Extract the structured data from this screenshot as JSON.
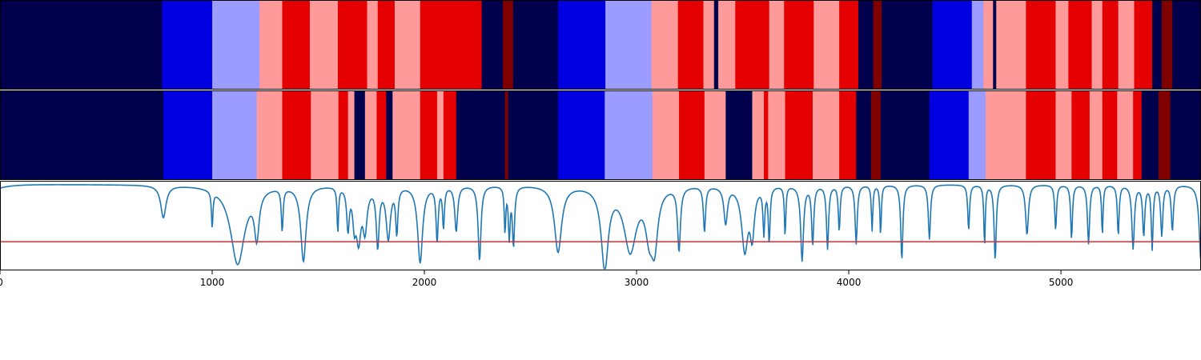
{
  "chart_data": {
    "type": "heatmap",
    "description_axis": "x",
    "xlim": [
      0,
      5660
    ],
    "xticks": [
      0,
      1000,
      2000,
      3000,
      4000,
      5000
    ],
    "xtick_labels": [
      "0",
      "1000",
      "2000",
      "3000",
      "4000",
      "5000"
    ],
    "grid": false,
    "colors": {
      "A": "#00004c",
      "B": "#0000e0",
      "C": "#9c9cff",
      "D": "#ff9a9a",
      "E": "#e40000",
      "F": "#800000",
      "curve": "#1f77b4",
      "threshold": "#e8282a"
    },
    "rows": [
      {
        "segments": [
          [
            0,
            764,
            "A"
          ],
          [
            764,
            1000,
            "B"
          ],
          [
            1000,
            1223,
            "C"
          ],
          [
            1223,
            1330,
            "D"
          ],
          [
            1330,
            1460,
            "E"
          ],
          [
            1460,
            1592,
            "D"
          ],
          [
            1592,
            1730,
            "E"
          ],
          [
            1730,
            1780,
            "D"
          ],
          [
            1780,
            1860,
            "E"
          ],
          [
            1860,
            1980,
            "D"
          ],
          [
            1980,
            2270,
            "E"
          ],
          [
            2270,
            2370,
            "A"
          ],
          [
            2370,
            2418,
            "F"
          ],
          [
            2418,
            2630,
            "A"
          ],
          [
            2630,
            2853,
            "B"
          ],
          [
            2853,
            3070,
            "C"
          ],
          [
            3070,
            3195,
            "D"
          ],
          [
            3195,
            3315,
            "E"
          ],
          [
            3315,
            3365,
            "D"
          ],
          [
            3365,
            3385,
            "A"
          ],
          [
            3385,
            3465,
            "D"
          ],
          [
            3465,
            3625,
            "E"
          ],
          [
            3625,
            3695,
            "D"
          ],
          [
            3695,
            3835,
            "E"
          ],
          [
            3835,
            3955,
            "D"
          ],
          [
            3955,
            4045,
            "E"
          ],
          [
            4045,
            4115,
            "A"
          ],
          [
            4115,
            4155,
            "F"
          ],
          [
            4155,
            4395,
            "A"
          ],
          [
            4395,
            4580,
            "B"
          ],
          [
            4580,
            4635,
            "C"
          ],
          [
            4635,
            4680,
            "D"
          ],
          [
            4680,
            4695,
            "A"
          ],
          [
            4695,
            4835,
            "D"
          ],
          [
            4835,
            4975,
            "E"
          ],
          [
            4975,
            5035,
            "D"
          ],
          [
            5035,
            5145,
            "E"
          ],
          [
            5145,
            5195,
            "D"
          ],
          [
            5195,
            5270,
            "E"
          ],
          [
            5270,
            5345,
            "D"
          ],
          [
            5345,
            5430,
            "E"
          ],
          [
            5430,
            5475,
            "A"
          ],
          [
            5475,
            5525,
            "F"
          ],
          [
            5525,
            5660,
            "A"
          ]
        ]
      },
      {
        "segments": [
          [
            0,
            770,
            "A"
          ],
          [
            770,
            1000,
            "B"
          ],
          [
            1000,
            1210,
            "C"
          ],
          [
            1210,
            1330,
            "D"
          ],
          [
            1330,
            1465,
            "E"
          ],
          [
            1465,
            1595,
            "D"
          ],
          [
            1595,
            1640,
            "E"
          ],
          [
            1640,
            1670,
            "D"
          ],
          [
            1670,
            1720,
            "A"
          ],
          [
            1720,
            1775,
            "D"
          ],
          [
            1775,
            1820,
            "E"
          ],
          [
            1820,
            1850,
            "A"
          ],
          [
            1850,
            1980,
            "D"
          ],
          [
            1980,
            2060,
            "E"
          ],
          [
            2060,
            2090,
            "D"
          ],
          [
            2090,
            2150,
            "E"
          ],
          [
            2150,
            2380,
            "A"
          ],
          [
            2380,
            2395,
            "F"
          ],
          [
            2395,
            2630,
            "A"
          ],
          [
            2630,
            2850,
            "B"
          ],
          [
            2850,
            3075,
            "C"
          ],
          [
            3075,
            3200,
            "D"
          ],
          [
            3200,
            3320,
            "E"
          ],
          [
            3320,
            3420,
            "D"
          ],
          [
            3420,
            3545,
            "A"
          ],
          [
            3545,
            3600,
            "D"
          ],
          [
            3600,
            3620,
            "E"
          ],
          [
            3620,
            3700,
            "D"
          ],
          [
            3700,
            3830,
            "E"
          ],
          [
            3830,
            3955,
            "D"
          ],
          [
            3955,
            4035,
            "E"
          ],
          [
            4035,
            4105,
            "A"
          ],
          [
            4105,
            4150,
            "F"
          ],
          [
            4150,
            4380,
            "A"
          ],
          [
            4380,
            4565,
            "B"
          ],
          [
            4565,
            4645,
            "C"
          ],
          [
            4645,
            4835,
            "D"
          ],
          [
            4835,
            4975,
            "E"
          ],
          [
            4975,
            5050,
            "D"
          ],
          [
            5050,
            5135,
            "E"
          ],
          [
            5135,
            5195,
            "D"
          ],
          [
            5195,
            5265,
            "E"
          ],
          [
            5265,
            5340,
            "D"
          ],
          [
            5340,
            5380,
            "E"
          ],
          [
            5380,
            5460,
            "A"
          ],
          [
            5460,
            5515,
            "F"
          ],
          [
            5515,
            5660,
            "A"
          ]
        ]
      }
    ],
    "curve": {
      "ylim": [
        0,
        1
      ],
      "threshold": 0.32,
      "baseline": 0.96,
      "dips": [
        [
          770,
          0.6,
          15
        ],
        [
          1000,
          0.55,
          4
        ],
        [
          1120,
          0.08,
          40
        ],
        [
          1210,
          0.45,
          13
        ],
        [
          1330,
          0.48,
          5
        ],
        [
          1430,
          0.12,
          15
        ],
        [
          1592,
          0.45,
          4
        ],
        [
          1640,
          0.5,
          7
        ],
        [
          1670,
          0.6,
          9
        ],
        [
          1690,
          0.4,
          13
        ],
        [
          1720,
          0.5,
          12
        ],
        [
          1780,
          0.3,
          8
        ],
        [
          1830,
          0.38,
          12
        ],
        [
          1870,
          0.45,
          6
        ],
        [
          1980,
          0.1,
          14
        ],
        [
          2060,
          0.35,
          6
        ],
        [
          2090,
          0.5,
          5
        ],
        [
          2150,
          0.45,
          8
        ],
        [
          2260,
          0.12,
          8
        ],
        [
          2380,
          0.45,
          4
        ],
        [
          2400,
          0.4,
          5
        ],
        [
          2420,
          0.3,
          6
        ],
        [
          2630,
          0.22,
          20
        ],
        [
          2850,
          0.06,
          20
        ],
        [
          2970,
          0.25,
          35
        ],
        [
          3060,
          0.5,
          22
        ],
        [
          3085,
          0.4,
          18
        ],
        [
          3200,
          0.25,
          8
        ],
        [
          3320,
          0.45,
          6
        ],
        [
          3420,
          0.55,
          10
        ],
        [
          3510,
          0.25,
          18
        ],
        [
          3545,
          0.45,
          12
        ],
        [
          3600,
          0.45,
          5
        ],
        [
          3625,
          0.35,
          5
        ],
        [
          3700,
          0.4,
          4
        ],
        [
          3780,
          0.12,
          8
        ],
        [
          3830,
          0.3,
          6
        ],
        [
          3900,
          0.25,
          6
        ],
        [
          3955,
          0.45,
          5
        ],
        [
          4035,
          0.3,
          6
        ],
        [
          4110,
          0.45,
          4
        ],
        [
          4150,
          0.4,
          4
        ],
        [
          4250,
          0.12,
          6
        ],
        [
          4380,
          0.35,
          6
        ],
        [
          4565,
          0.45,
          5
        ],
        [
          4640,
          0.28,
          4
        ],
        [
          4690,
          0.12,
          6
        ],
        [
          4840,
          0.4,
          8
        ],
        [
          4975,
          0.45,
          5
        ],
        [
          5050,
          0.35,
          5
        ],
        [
          5130,
          0.3,
          6
        ],
        [
          5195,
          0.4,
          4
        ],
        [
          5270,
          0.4,
          5
        ],
        [
          5340,
          0.25,
          7
        ],
        [
          5390,
          0.4,
          6
        ],
        [
          5430,
          0.25,
          5
        ],
        [
          5475,
          0.4,
          6
        ],
        [
          5525,
          0.45,
          6
        ],
        [
          5660,
          0.1,
          10
        ]
      ]
    }
  }
}
